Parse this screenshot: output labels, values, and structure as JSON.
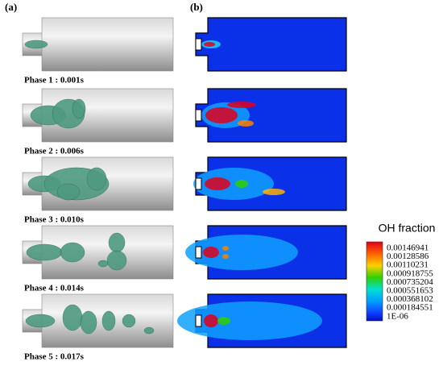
{
  "panels": {
    "a": "(a)",
    "b": "(b)"
  },
  "phases": [
    "Phase 1 : 0.001s",
    "Phase 2 : 0.006s",
    "Phase 3 : 0.010s",
    "Phase 4 : 0.014s",
    "Phase 5 : 0.017s"
  ],
  "colorbar": {
    "title": "OH fraction",
    "labels": [
      "0.00146941",
      "0.00128586",
      "0.00110231",
      "0.000918755",
      "0.000735204",
      "0.000551653",
      "0.000368102",
      "0.000184551",
      "1E-06"
    ]
  }
}
